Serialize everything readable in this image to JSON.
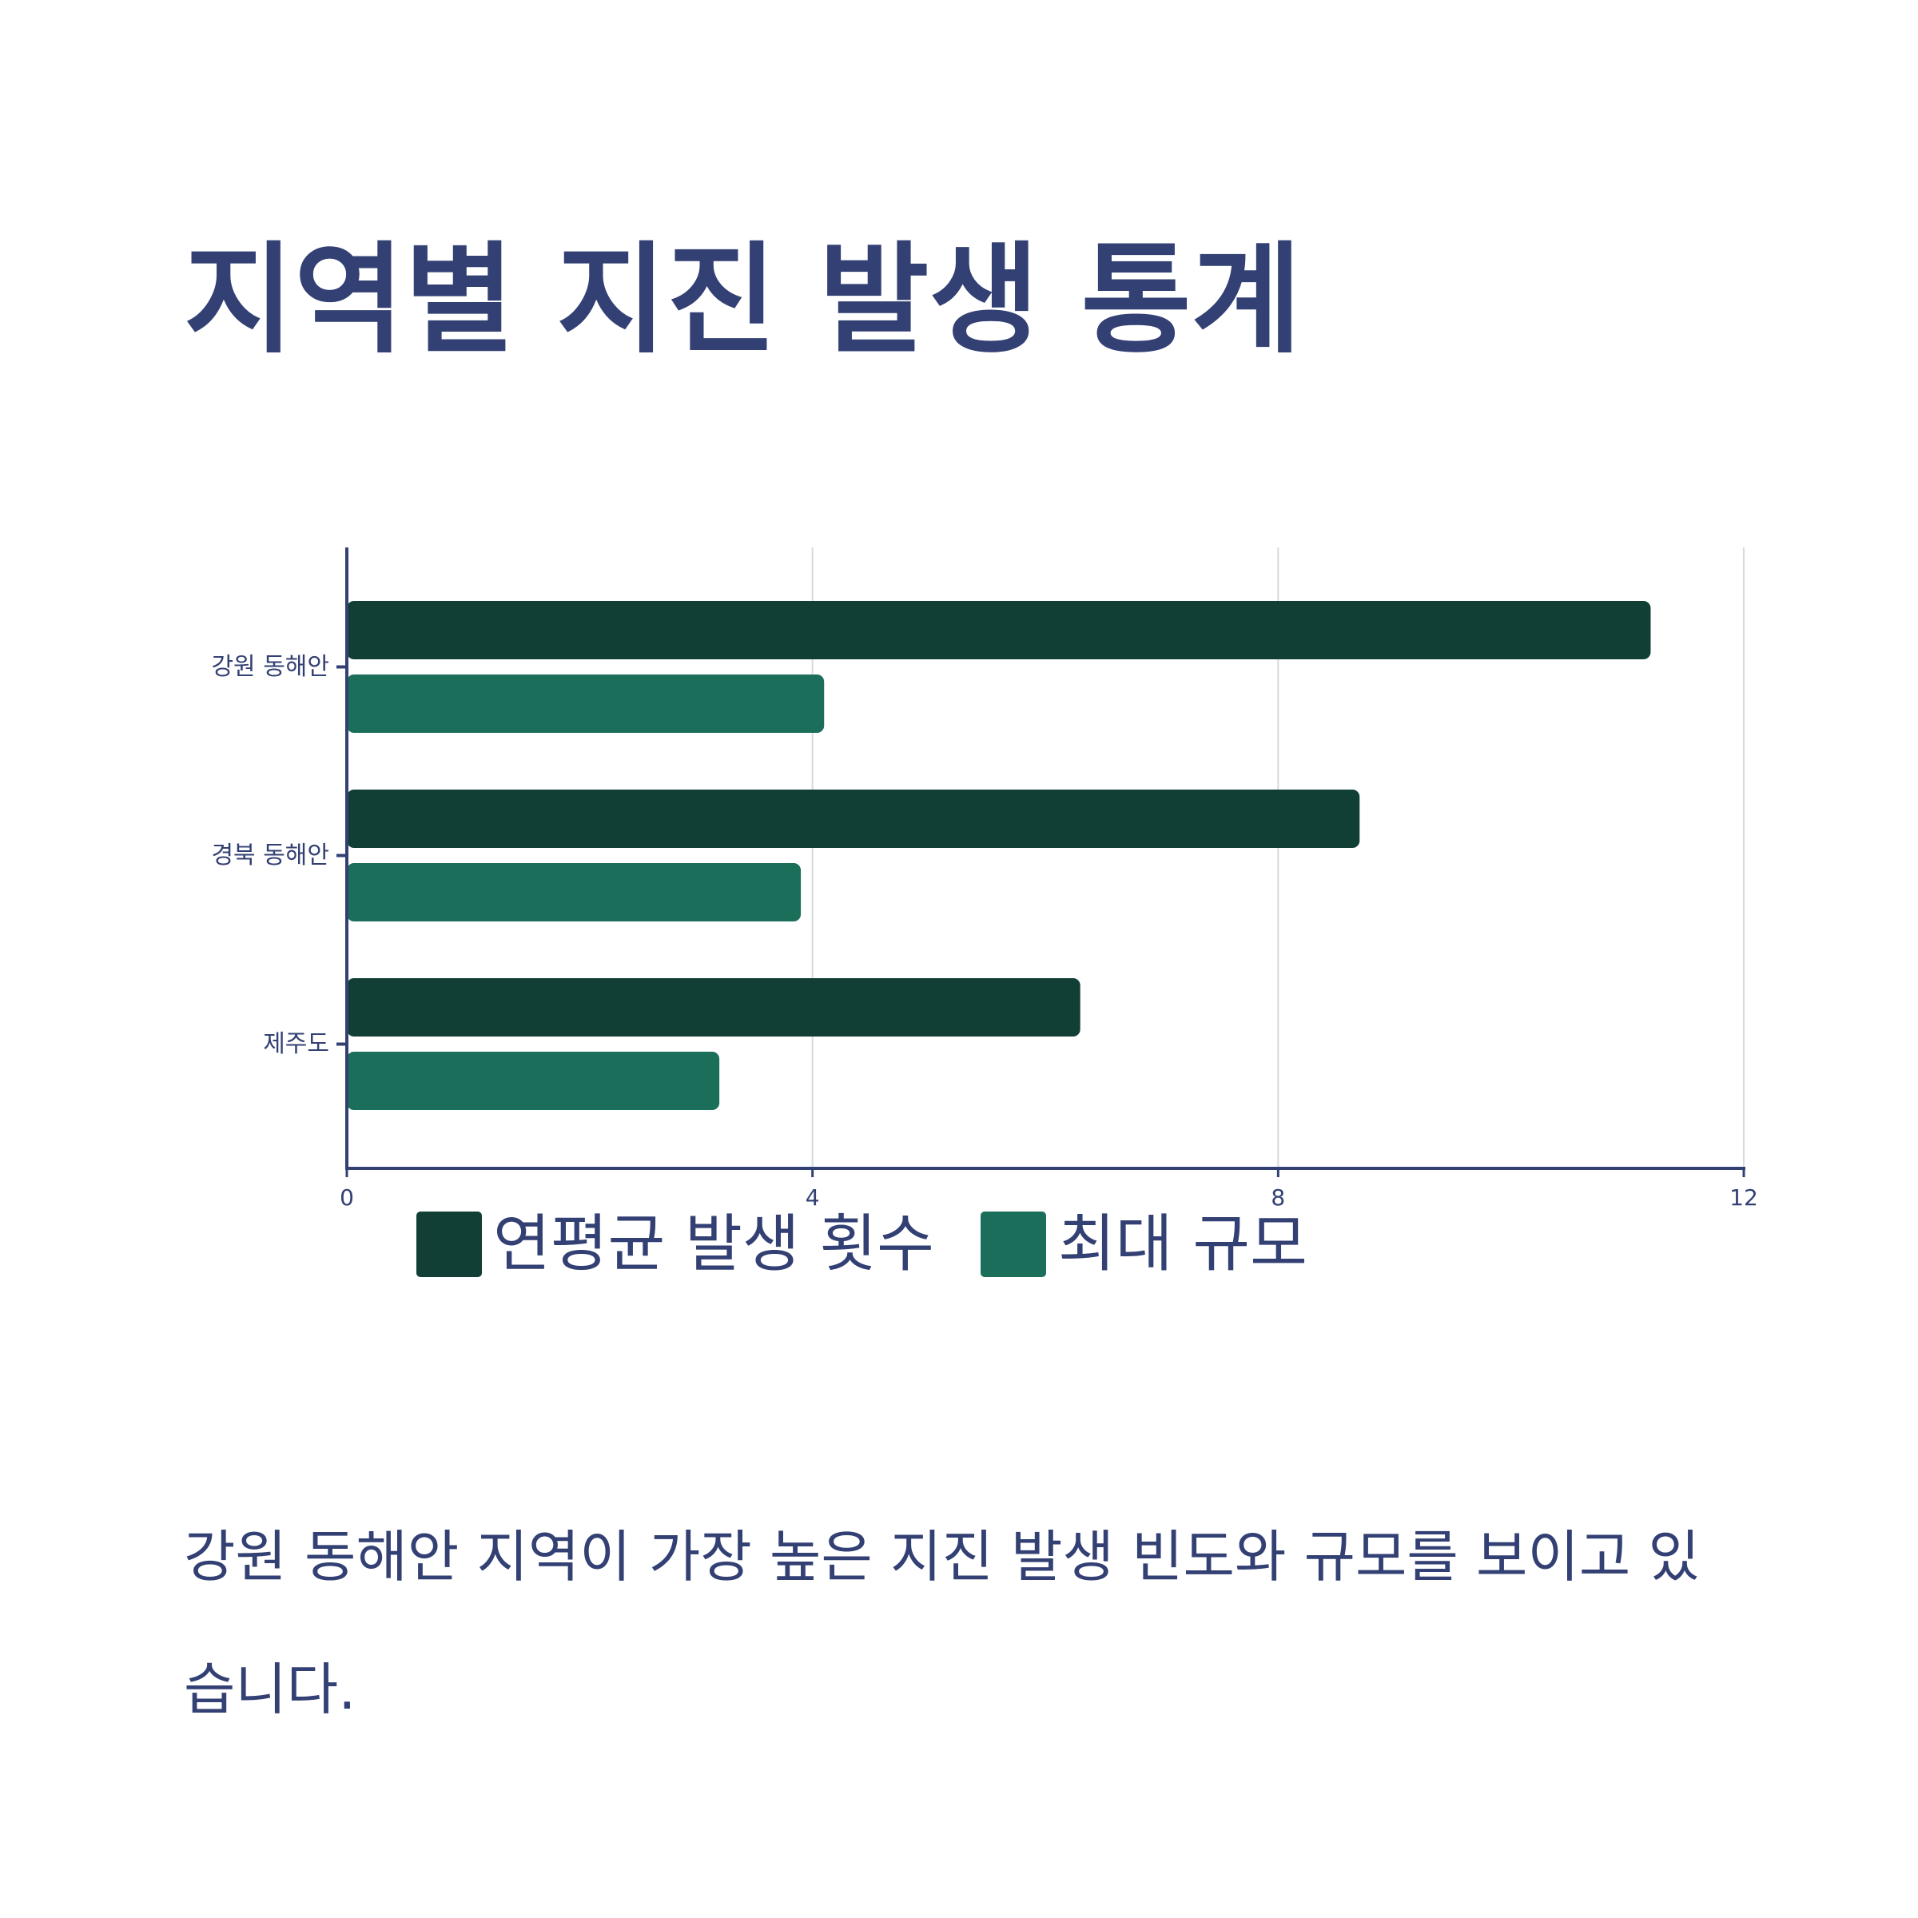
{
  "title": "지역별 지진 발생 통계",
  "caption": "강원 동해안 지역이 가장 높은 지진 발생 빈도와 규모를 보이고 있습니다.",
  "colors": {
    "text": "#334073",
    "axis": "#334073",
    "grid": "#d9dadf",
    "series_1": "#113f35",
    "series_2": "#1b6e5a"
  },
  "chart_data": {
    "type": "bar",
    "orientation": "horizontal",
    "categories": [
      "강원 동해안",
      "경북 동해안",
      "제주도"
    ],
    "series": [
      {
        "name": "연평균 발생 횟수",
        "values": [
          11.2,
          8.7,
          6.3
        ]
      },
      {
        "name": "최대 규모",
        "values": [
          4.1,
          3.9,
          3.2
        ]
      }
    ],
    "x_ticks": [
      0,
      4,
      8,
      12
    ],
    "xlim": [
      0,
      12
    ],
    "grid": true,
    "legend_position": "bottom",
    "xlabel": "",
    "ylabel": ""
  }
}
